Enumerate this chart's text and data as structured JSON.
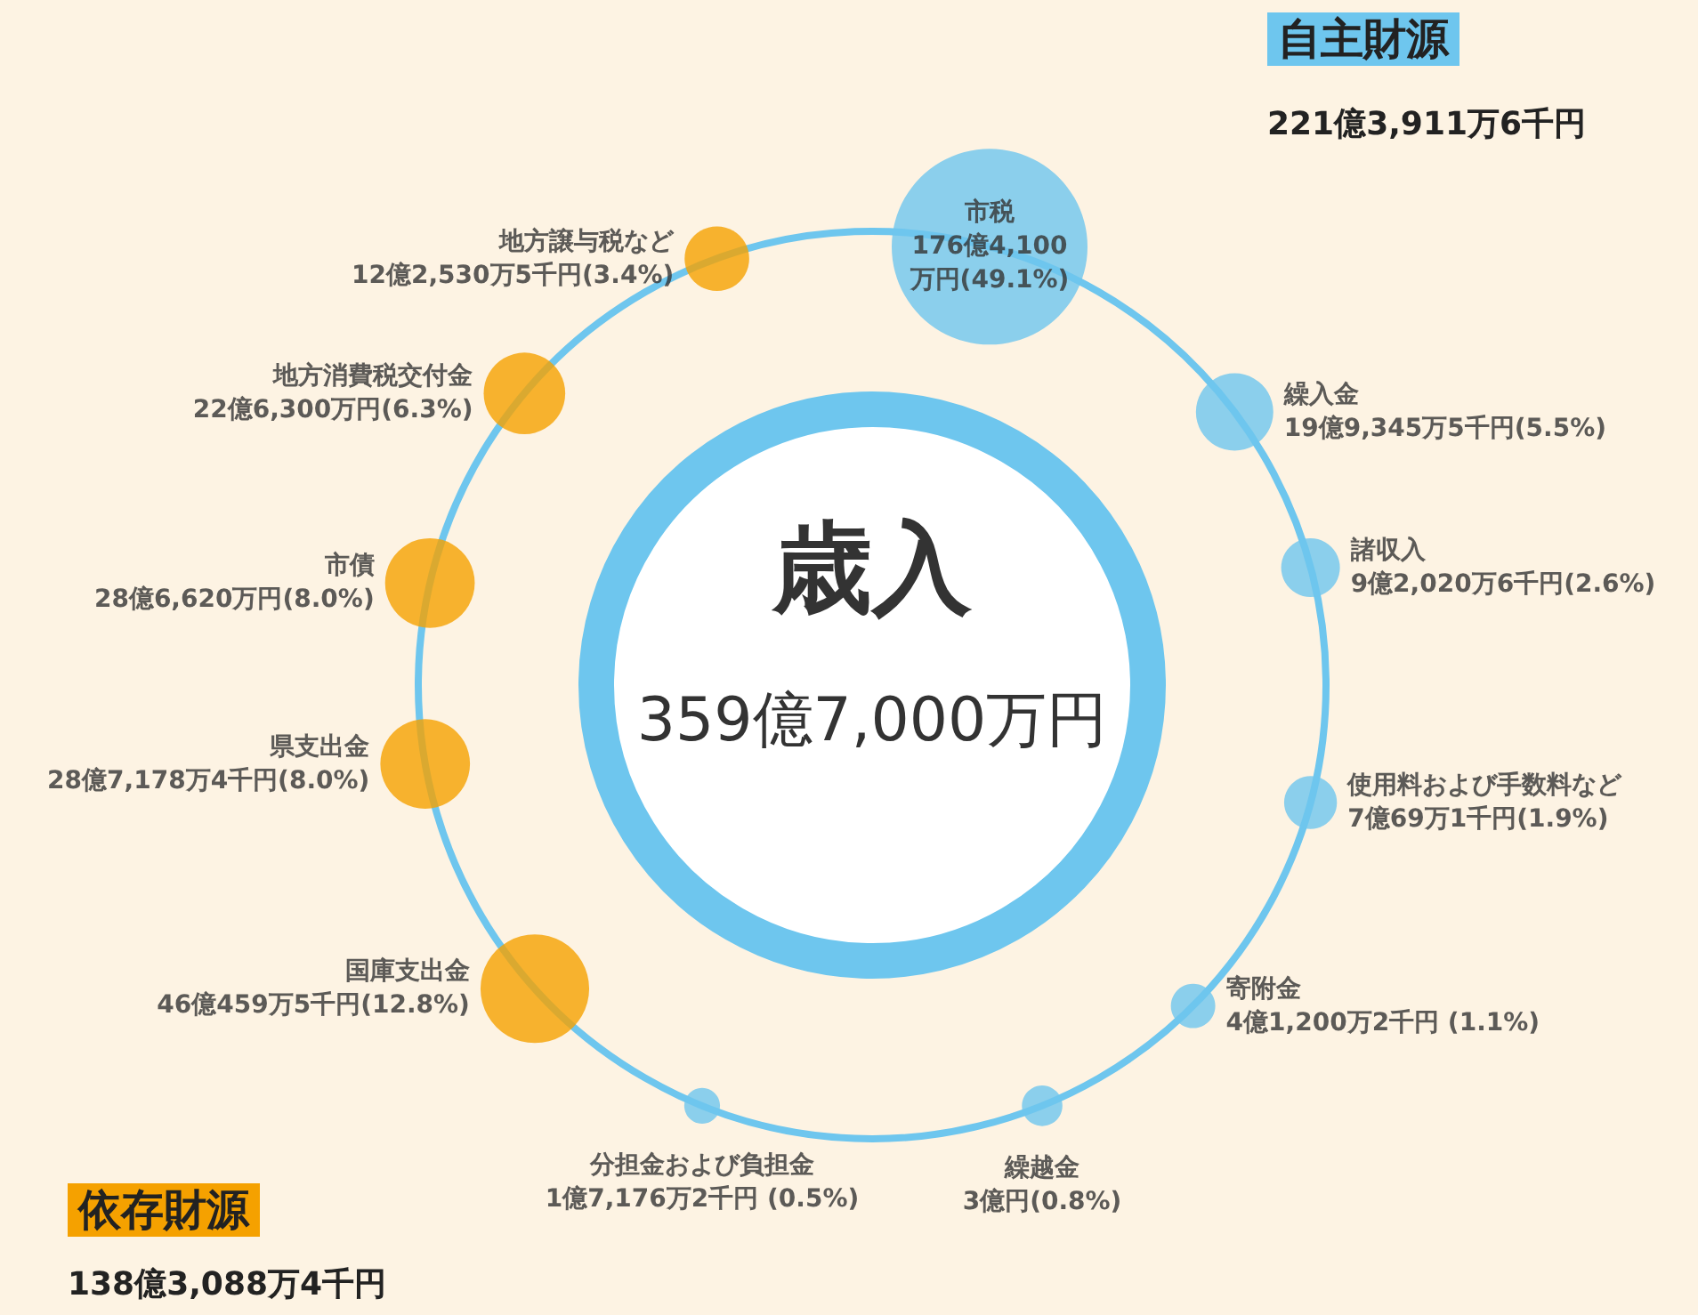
{
  "chart_data": {
    "type": "other",
    "title": "歳入",
    "subtitle": "359億7,000万円",
    "categories": [
      "市税",
      "繰入金",
      "諸収入",
      "使用料および手数料など",
      "寄附金",
      "繰越金",
      "分担金および負担金",
      "国庫支出金",
      "県支出金",
      "市債",
      "地方消費税交付金",
      "地方譲与税など"
    ],
    "values": [
      49.1,
      5.5,
      2.6,
      1.9,
      1.1,
      0.8,
      0.5,
      12.8,
      8.0,
      8.0,
      6.3,
      3.4
    ],
    "value_labels": [
      "176億4,100万円(49.1%)",
      "19億9,345万5千円(5.5%)",
      "9億2,020万6千円(2.6%)",
      "7億69万1千円(1.9%)",
      "4億1,200万2千円 (1.1%)",
      "3億円(0.8%)",
      "1億7,176万2千円 (0.5%)",
      "46億459万5千円(12.8%)",
      "28億7,178万4千円(8.0%)",
      "28億6,620万円(8.0%)",
      "22億6,300万円(6.3%)",
      "12億2,530万5千円(3.4%)"
    ],
    "colors": [
      "#6ec6ee",
      "#6ec6ee",
      "#6ec6ee",
      "#6ec6ee",
      "#6ec6ee",
      "#6ec6ee",
      "#6ec6ee",
      "#f5a100",
      "#f5a100",
      "#f5a100",
      "#f5a100",
      "#f5a100"
    ],
    "annotations": [
      "自主財源",
      "221億3,911万6千円",
      "依存財源",
      "138億3,088万4千円"
    ]
  }
}
